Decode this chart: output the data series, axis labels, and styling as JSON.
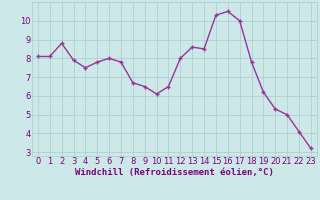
{
  "x": [
    0,
    1,
    2,
    3,
    4,
    5,
    6,
    7,
    8,
    9,
    10,
    11,
    12,
    13,
    14,
    15,
    16,
    17,
    18,
    19,
    20,
    21,
    22,
    23
  ],
  "y": [
    8.1,
    8.1,
    8.8,
    7.9,
    7.5,
    7.8,
    8.0,
    7.8,
    6.7,
    6.5,
    6.1,
    6.5,
    8.0,
    8.6,
    8.5,
    10.3,
    10.5,
    10.0,
    7.8,
    6.2,
    5.3,
    5.0,
    4.1,
    3.2
  ],
  "line_color": "#993399",
  "marker_color": "#993399",
  "bg_color": "#cce8e8",
  "grid_color": "#aacccc",
  "xlabel": "Windchill (Refroidissement éolien,°C)",
  "xlim": [
    -0.5,
    23.5
  ],
  "ylim": [
    2.8,
    11.0
  ],
  "yticks": [
    3,
    4,
    5,
    6,
    7,
    8,
    9,
    10
  ],
  "xticks": [
    0,
    1,
    2,
    3,
    4,
    5,
    6,
    7,
    8,
    9,
    10,
    11,
    12,
    13,
    14,
    15,
    16,
    17,
    18,
    19,
    20,
    21,
    22,
    23
  ],
  "label_color": "#800080",
  "tick_color": "#800080",
  "xlabel_fontsize": 6.5,
  "tick_fontsize": 6.0,
  "linewidth": 1.0,
  "markersize": 2.5
}
